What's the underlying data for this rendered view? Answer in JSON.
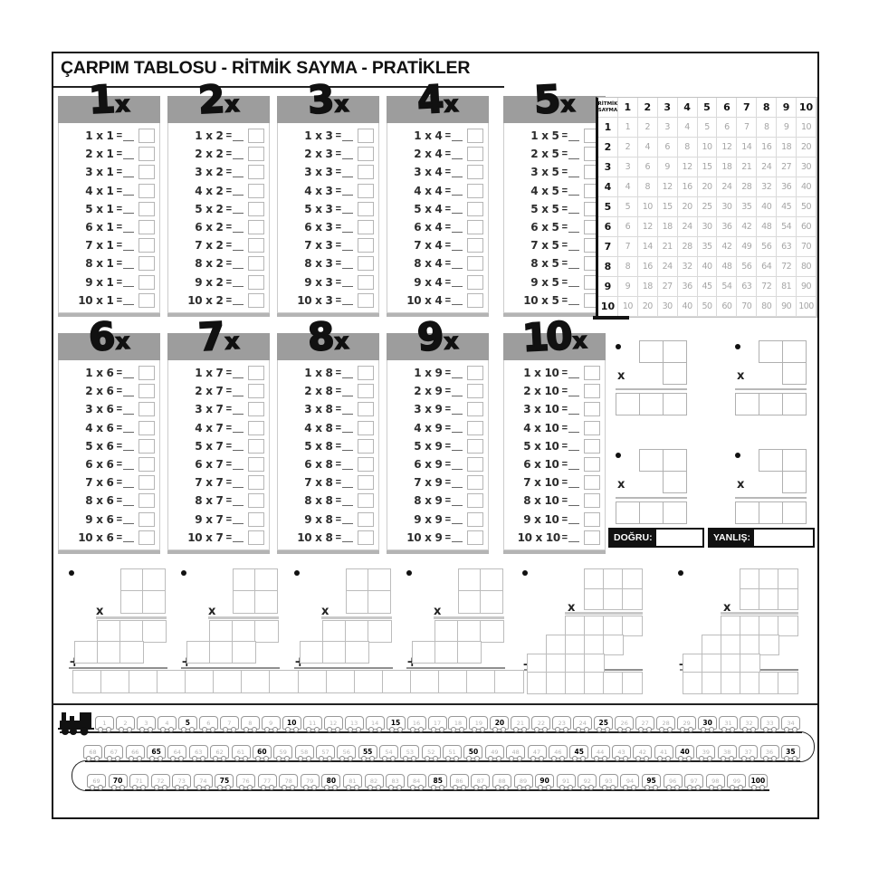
{
  "title": "ÇARPIM TABLOSU - RİTMİK SAYMA - PRATİKLER",
  "ops": {
    "times": "x",
    "plus": "+",
    "equals": "="
  },
  "tables": [
    {
      "big": "1",
      "suffix": "x",
      "problems": [
        "1 x 1",
        "2 x 1",
        "3 x 1",
        "4 x 1",
        "5 x 1",
        "6 x 1",
        "7 x 1",
        "8 x 1",
        "9 x 1",
        "10 x 1"
      ]
    },
    {
      "big": "2",
      "suffix": "x",
      "problems": [
        "1 x 2",
        "2 x 2",
        "3 x 2",
        "4 x 2",
        "5 x 2",
        "6 x 2",
        "7 x 2",
        "8 x 2",
        "9 x 2",
        "10 x 2"
      ]
    },
    {
      "big": "3",
      "suffix": "x",
      "problems": [
        "1 x 3",
        "2 x 3",
        "3 x 3",
        "4 x 3",
        "5 x 3",
        "6 x 3",
        "7 x 3",
        "8 x 3",
        "9 x 3",
        "10 x 3"
      ]
    },
    {
      "big": "4",
      "suffix": "x",
      "problems": [
        "1 x 4",
        "2 x 4",
        "3 x 4",
        "4 x 4",
        "5 x 4",
        "6 x 4",
        "7 x 4",
        "8 x 4",
        "9 x 4",
        "10 x 4"
      ]
    },
    {
      "big": "5",
      "suffix": "x",
      "problems": [
        "1 x 5",
        "2 x 5",
        "3 x 5",
        "4 x 5",
        "5 x 5",
        "6 x 5",
        "7 x 5",
        "8 x 5",
        "9 x 5",
        "10 x 5"
      ]
    },
    {
      "big": "6",
      "suffix": "x",
      "problems": [
        "1 x 6",
        "2 x 6",
        "3 x 6",
        "4 x 6",
        "5 x 6",
        "6 x 6",
        "7 x 6",
        "8 x 6",
        "9 x 6",
        "10 x 6"
      ]
    },
    {
      "big": "7",
      "suffix": "x",
      "problems": [
        "1 x 7",
        "2 x 7",
        "3 x 7",
        "4 x 7",
        "5 x 7",
        "6 x 7",
        "7 x 7",
        "8 x 7",
        "9 x 7",
        "10 x 7"
      ]
    },
    {
      "big": "8",
      "suffix": "x",
      "problems": [
        "1 x 8",
        "2 x 8",
        "3 x 8",
        "4 x 8",
        "5 x 8",
        "6 x 8",
        "7 x 8",
        "8 x 8",
        "9 x 8",
        "10 x 8"
      ]
    },
    {
      "big": "9",
      "suffix": "x",
      "problems": [
        "1 x 9",
        "2 x 9",
        "3 x 9",
        "4 x 9",
        "5 x 9",
        "6 x 9",
        "7 x 9",
        "8 x 9",
        "9 x 9",
        "10 x 9"
      ]
    },
    {
      "big": "10",
      "suffix": "x",
      "problems": [
        "1 x 10",
        "2 x 10",
        "3 x 10",
        "4 x 10",
        "5 x 10",
        "6 x 10",
        "7 x 10",
        "8 x 10",
        "9 x 10",
        "10 x 10"
      ]
    }
  ],
  "ritmik": {
    "corner": [
      "RİTMİK",
      "SAYMA"
    ],
    "headers": [
      1,
      2,
      3,
      4,
      5,
      6,
      7,
      8,
      9,
      10
    ],
    "rows": [
      {
        "label": 1,
        "values": [
          1,
          2,
          3,
          4,
          5,
          6,
          7,
          8,
          9,
          10
        ]
      },
      {
        "label": 2,
        "values": [
          2,
          4,
          6,
          8,
          10,
          12,
          14,
          16,
          18,
          20
        ]
      },
      {
        "label": 3,
        "values": [
          3,
          6,
          9,
          12,
          15,
          18,
          21,
          24,
          27,
          30
        ]
      },
      {
        "label": 4,
        "values": [
          4,
          8,
          12,
          16,
          20,
          24,
          28,
          32,
          36,
          40
        ]
      },
      {
        "label": 5,
        "values": [
          5,
          10,
          15,
          20,
          25,
          30,
          35,
          40,
          45,
          50
        ]
      },
      {
        "label": 6,
        "values": [
          6,
          12,
          18,
          24,
          30,
          36,
          42,
          48,
          54,
          60
        ]
      },
      {
        "label": 7,
        "values": [
          7,
          14,
          21,
          28,
          35,
          42,
          49,
          56,
          63,
          70
        ]
      },
      {
        "label": 8,
        "values": [
          8,
          16,
          24,
          32,
          40,
          48,
          56,
          64,
          72,
          80
        ]
      },
      {
        "label": 9,
        "values": [
          9,
          18,
          27,
          36,
          45,
          54,
          63,
          72,
          81,
          90
        ]
      },
      {
        "label": 10,
        "values": [
          10,
          20,
          30,
          40,
          50,
          60,
          70,
          80,
          90,
          100
        ]
      }
    ]
  },
  "score": {
    "correct": "DOĞRU:",
    "wrong": "YANLIŞ:"
  },
  "train": {
    "row1": [
      1,
      2,
      3,
      4,
      5,
      6,
      7,
      8,
      9,
      10,
      11,
      12,
      13,
      14,
      15,
      16,
      17,
      18,
      19,
      20,
      21,
      22,
      23,
      24,
      25,
      26,
      27,
      28,
      29,
      30,
      31,
      32,
      33,
      34
    ],
    "row2": [
      68,
      67,
      66,
      65,
      64,
      63,
      62,
      61,
      60,
      59,
      58,
      57,
      56,
      55,
      54,
      53,
      52,
      51,
      50,
      49,
      48,
      47,
      46,
      45,
      44,
      43,
      42,
      41,
      40,
      39,
      38,
      37,
      36,
      35
    ],
    "row3": [
      69,
      70,
      71,
      72,
      73,
      74,
      75,
      76,
      77,
      78,
      79,
      80,
      81,
      82,
      83,
      84,
      85,
      86,
      87,
      88,
      89,
      90,
      91,
      92,
      93,
      94,
      95,
      96,
      97,
      98,
      99,
      100
    ]
  }
}
